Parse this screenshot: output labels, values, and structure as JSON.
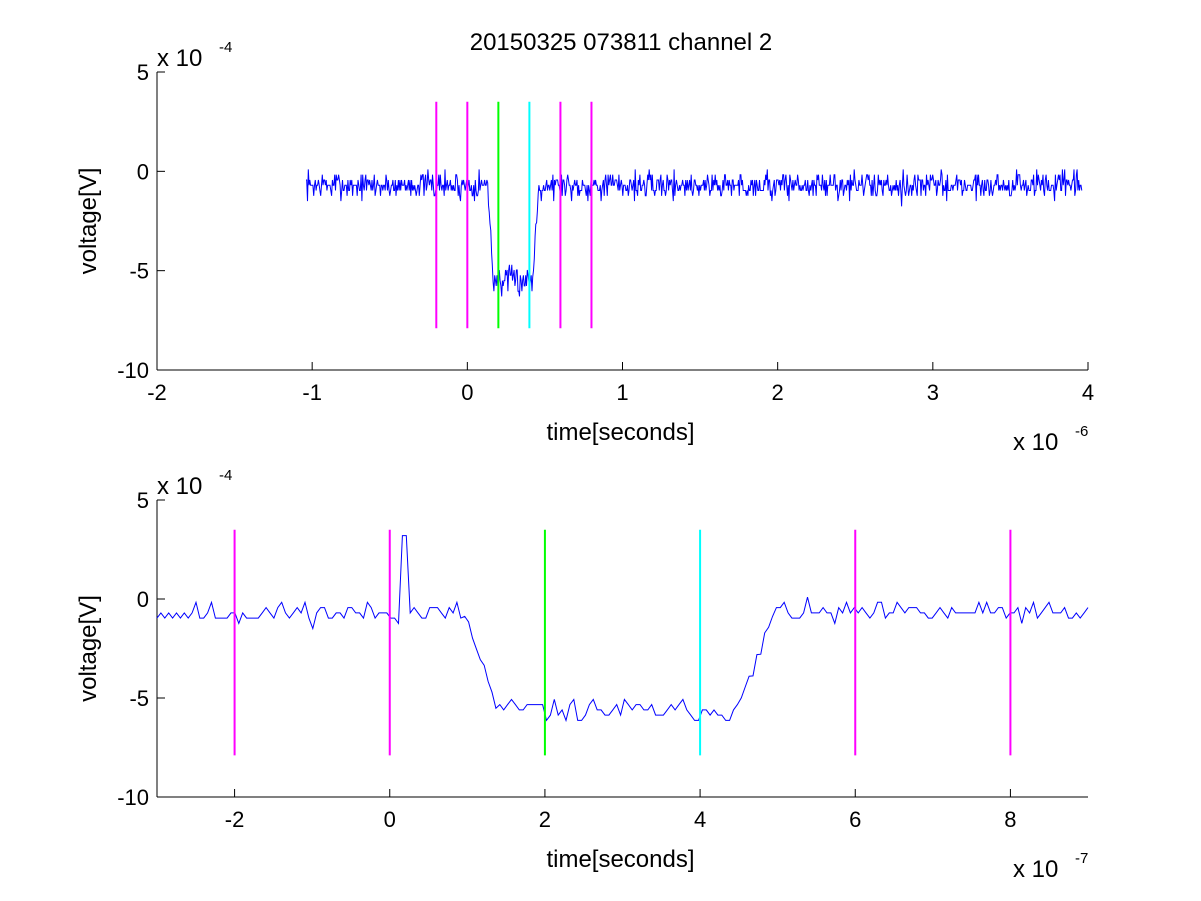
{
  "figure": {
    "title": "20150325 073811 channel 2"
  },
  "chart_data": [
    {
      "type": "line",
      "xlabel": "time[seconds]",
      "ylabel": "voltage[V]",
      "x_exponent_label": "x 10",
      "x_exponent_power": "-6",
      "y_exponent_label": "x 10",
      "y_exponent_power": "-4",
      "xlim": [
        -2,
        4
      ],
      "ylim": [
        -10,
        5
      ],
      "xticks": [
        -2,
        -1,
        0,
        1,
        2,
        3,
        4
      ],
      "xtick_labels": [
        "-2",
        "-1",
        "0",
        "1",
        "2",
        "3",
        "4"
      ],
      "yticks": [
        -10,
        -5,
        0,
        5
      ],
      "ytick_labels": [
        "-10",
        "-5",
        "0",
        "5"
      ],
      "grid": false,
      "signal": {
        "color": "#0000ff",
        "x_start": -1.04,
        "x_end": 3.96,
        "samples": 1000,
        "events": [
          {
            "start": 0.17,
            "end": 0.42,
            "level": -5.5,
            "rise": 0.04
          }
        ],
        "noise_amp": 1.2,
        "baseline": -0.7,
        "seed": 7
      },
      "markers": [
        {
          "x": -0.2,
          "color": "#ff00ff",
          "y0": -7.9,
          "y1": 3.5
        },
        {
          "x": 0.0,
          "color": "#ff00ff",
          "y0": -7.9,
          "y1": 3.5
        },
        {
          "x": 0.2,
          "color": "#00ff00",
          "y0": -7.9,
          "y1": 3.5
        },
        {
          "x": 0.4,
          "color": "#00ffff",
          "y0": -7.9,
          "y1": 3.5
        },
        {
          "x": 0.6,
          "color": "#ff00ff",
          "y0": -7.9,
          "y1": 3.5
        },
        {
          "x": 0.8,
          "color": "#ff00ff",
          "y0": -7.9,
          "y1": 3.5
        }
      ]
    },
    {
      "type": "line",
      "xlabel": "time[seconds]",
      "ylabel": "voltage[V]",
      "x_exponent_label": "x 10",
      "x_exponent_power": "-7",
      "y_exponent_label": "x 10",
      "y_exponent_power": "-4",
      "xlim": [
        -3,
        9
      ],
      "ylim": [
        -10,
        5
      ],
      "xticks": [
        -2,
        0,
        2,
        4,
        6,
        8
      ],
      "xtick_labels": [
        "-2",
        "0",
        "2",
        "4",
        "6",
        "8"
      ],
      "yticks": [
        -10,
        -5,
        0,
        5
      ],
      "ytick_labels": [
        "-10",
        "-5",
        "0",
        "5"
      ],
      "grid": false,
      "signal": {
        "color": "#0000ff",
        "x_start": -3,
        "x_end": 9,
        "samples": 240,
        "events": [
          {
            "start": 1.4,
            "end": 4.5,
            "level": -5.6,
            "rise": 0.45
          }
        ],
        "noise_amp": 1.0,
        "baseline": -0.7,
        "seed": 11,
        "spikes": [
          {
            "x": 0.2,
            "y": 3.2
          }
        ]
      },
      "markers": [
        {
          "x": -2,
          "color": "#ff00ff",
          "y0": -7.9,
          "y1": 3.5
        },
        {
          "x": 0,
          "color": "#ff00ff",
          "y0": -7.9,
          "y1": 3.5
        },
        {
          "x": 2,
          "color": "#00ff00",
          "y0": -7.9,
          "y1": 3.5
        },
        {
          "x": 4,
          "color": "#00ffff",
          "y0": -7.9,
          "y1": 3.5
        },
        {
          "x": 6,
          "color": "#ff00ff",
          "y0": -7.9,
          "y1": 3.5
        },
        {
          "x": 8,
          "color": "#ff00ff",
          "y0": -7.9,
          "y1": 3.5
        }
      ]
    }
  ]
}
